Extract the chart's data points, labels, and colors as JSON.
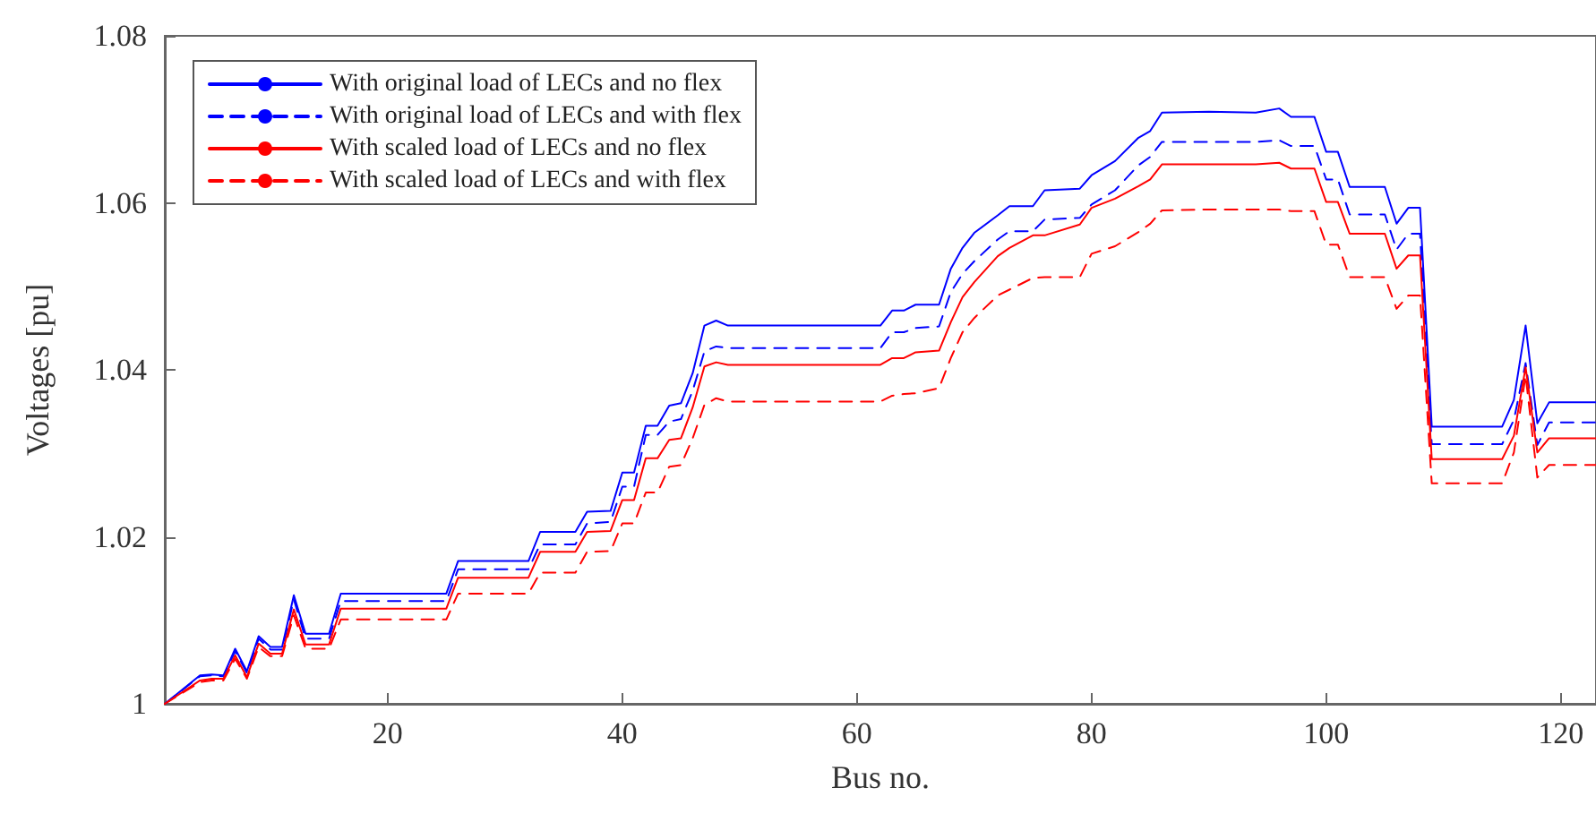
{
  "chart_data": {
    "type": "line",
    "xlabel": "Bus no.",
    "ylabel": "Voltages [pu]",
    "x": [
      1,
      4,
      5,
      6,
      7,
      8,
      9,
      10,
      11,
      12,
      13,
      15,
      16,
      25,
      26,
      32,
      33,
      36,
      37,
      39,
      40,
      41,
      42,
      43,
      44,
      45,
      46,
      47,
      48,
      49,
      62,
      63,
      64,
      65,
      67,
      68,
      69,
      70,
      72,
      73,
      75,
      76,
      79,
      80,
      82,
      84,
      85,
      86,
      90,
      94,
      96,
      97,
      99,
      100,
      101,
      102,
      105,
      106,
      107,
      108,
      109,
      115,
      116,
      117,
      118,
      119,
      123
    ],
    "xlim": [
      1,
      123
    ],
    "xticks": [
      20,
      40,
      60,
      80,
      100,
      120
    ],
    "ylim": [
      1,
      1.08
    ],
    "yticks": [
      1,
      1.02,
      1.04,
      1.06,
      1.08
    ],
    "grid": false,
    "legend": "top left",
    "marker": "none",
    "series": [
      {
        "name": "With original load of LECs and no flex",
        "color": "#0000ff",
        "line_style": "solid",
        "values": [
          1.0,
          1.0034,
          1.0035,
          1.0034,
          1.0066,
          1.0039,
          1.0081,
          1.0068,
          1.0068,
          1.013,
          1.0084,
          1.0084,
          1.0132,
          1.0132,
          1.0171,
          1.0171,
          1.0206,
          1.0206,
          1.023,
          1.0231,
          1.0277,
          1.0277,
          1.0333,
          1.0333,
          1.0357,
          1.036,
          1.0396,
          1.0453,
          1.0459,
          1.0453,
          1.0453,
          1.0471,
          1.0471,
          1.0478,
          1.0478,
          1.0521,
          1.0546,
          1.0564,
          1.0585,
          1.0596,
          1.0596,
          1.0615,
          1.0617,
          1.0633,
          1.065,
          1.0678,
          1.0686,
          1.0708,
          1.0709,
          1.0708,
          1.0713,
          1.0703,
          1.0703,
          1.0661,
          1.0661,
          1.0619,
          1.0619,
          1.0575,
          1.0594,
          1.0594,
          1.0332,
          1.0332,
          1.0364,
          1.0453,
          1.0336,
          1.0361,
          1.0361
        ]
      },
      {
        "name": "With original load of LECs and with flex",
        "color": "#0000ff",
        "line_style": "dashed",
        "values": [
          1.0,
          1.0033,
          1.0034,
          1.0033,
          1.0063,
          1.0037,
          1.0078,
          1.0065,
          1.0065,
          1.0125,
          1.0078,
          1.0078,
          1.0123,
          1.0123,
          1.0161,
          1.0161,
          1.0191,
          1.0191,
          1.0216,
          1.0218,
          1.026,
          1.026,
          1.0322,
          1.0322,
          1.0338,
          1.0341,
          1.0375,
          1.0422,
          1.0428,
          1.0426,
          1.0426,
          1.0445,
          1.0445,
          1.045,
          1.0452,
          1.0493,
          1.0515,
          1.053,
          1.0556,
          1.0566,
          1.0566,
          1.058,
          1.0582,
          1.0598,
          1.0615,
          1.0645,
          1.0655,
          1.0673,
          1.0673,
          1.0673,
          1.0675,
          1.0668,
          1.0668,
          1.0628,
          1.0628,
          1.0586,
          1.0586,
          1.0544,
          1.0563,
          1.0563,
          1.0311,
          1.0311,
          1.034,
          1.0408,
          1.031,
          1.0337,
          1.0337
        ]
      },
      {
        "name": "With scaled load of LECs and no flex",
        "color": "#ff0000",
        "line_style": "solid",
        "values": [
          1.0,
          1.0028,
          1.003,
          1.003,
          1.0058,
          1.0032,
          1.0072,
          1.006,
          1.006,
          1.0113,
          1.0071,
          1.0071,
          1.0114,
          1.0114,
          1.0151,
          1.0151,
          1.0182,
          1.0182,
          1.0206,
          1.0207,
          1.0244,
          1.0244,
          1.0294,
          1.0294,
          1.0316,
          1.0318,
          1.0355,
          1.0404,
          1.0409,
          1.0406,
          1.0406,
          1.0414,
          1.0414,
          1.0421,
          1.0423,
          1.0457,
          1.0487,
          1.0505,
          1.0536,
          1.0546,
          1.0561,
          1.0561,
          1.0574,
          1.0594,
          1.0605,
          1.062,
          1.0628,
          1.0646,
          1.0646,
          1.0646,
          1.0648,
          1.0641,
          1.0641,
          1.0601,
          1.0601,
          1.0563,
          1.0563,
          1.0521,
          1.0537,
          1.0537,
          1.0293,
          1.0293,
          1.0321,
          1.0403,
          1.0301,
          1.0318,
          1.0318
        ]
      },
      {
        "name": "With scaled load of LECs and with flex",
        "color": "#ff0000",
        "line_style": "dashed",
        "values": [
          1.0,
          1.0026,
          1.0028,
          1.0028,
          1.0054,
          1.003,
          1.0068,
          1.0057,
          1.0057,
          1.0106,
          1.0066,
          1.0066,
          1.0101,
          1.0101,
          1.0132,
          1.0132,
          1.0157,
          1.0157,
          1.0182,
          1.0183,
          1.0216,
          1.0216,
          1.0253,
          1.0253,
          1.0284,
          1.0286,
          1.0318,
          1.0358,
          1.0366,
          1.0362,
          1.0362,
          1.0369,
          1.0371,
          1.0372,
          1.0378,
          1.0414,
          1.0445,
          1.0462,
          1.0489,
          1.0496,
          1.051,
          1.0511,
          1.0511,
          1.0539,
          1.0548,
          1.0565,
          1.0575,
          1.0591,
          1.0592,
          1.0592,
          1.0592,
          1.059,
          1.059,
          1.055,
          1.055,
          1.0511,
          1.0511,
          1.0473,
          1.0489,
          1.0489,
          1.0264,
          1.0264,
          1.0301,
          1.0393,
          1.0271,
          1.0286,
          1.0286
        ]
      }
    ]
  }
}
